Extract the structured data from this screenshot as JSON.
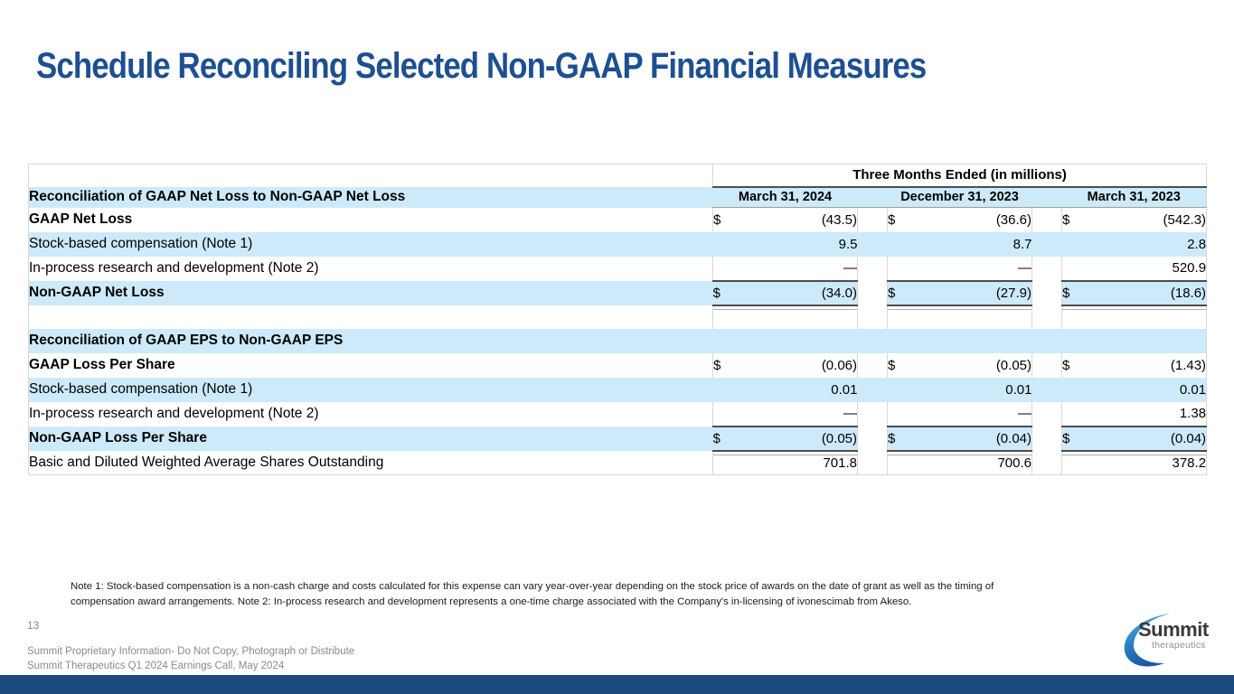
{
  "slide": {
    "title": "Schedule Reconciling Selected Non-GAAP Financial Measures",
    "page_number": "13",
    "footer_line1": "Summit Proprietary Information- Do Not Copy, Photograph or Distribute",
    "footer_line2": "Summit Therapeutics Q1 2024 Earnings Call, May 2024",
    "note": "Note 1: Stock-based compensation is a non-cash charge and costs calculated for this expense can vary year-over-year depending on the stock price of awards on the date of grant as well as the timing of compensation award arrangements. Note 2: In-process research and development represents a one-time charge associated with the Company's in-licensing of ivonescimab from Akeso.",
    "logo": {
      "name": "Summit",
      "sub": "therapeutics"
    }
  },
  "colors": {
    "title_blue": "#1d4f91",
    "stripe_blue": "#cdeafb",
    "bottom_bar_navy": "#1a4a7e",
    "rule_dark": "#4d4d4d",
    "logo_swoosh_light": "#48b7e8",
    "logo_swoosh_dark": "#1b5aa3"
  },
  "table": {
    "currency": "$",
    "period_header": "Three Months Ended (in millions)",
    "columns": [
      "March 31, 2024",
      "December 31, 2023",
      "March 31, 2023"
    ],
    "rows": [
      {
        "type": "period",
        "name": "period-header-row",
        "text": "Three Months Ended (in millions)"
      },
      {
        "type": "colhead",
        "name": "column-header-row",
        "shade": true,
        "label": "Reconciliation of GAAP Net Loss to Non-GAAP Net Loss",
        "cols": [
          "March 31, 2024",
          "December 31, 2023",
          "March 31, 2023"
        ]
      },
      {
        "type": "data",
        "name": "row-gaap-net-loss",
        "shade": false,
        "bold": true,
        "dollar": true,
        "label": "GAAP Net Loss",
        "values": [
          "(43.5)",
          "(36.6)",
          "(542.3)"
        ]
      },
      {
        "type": "data",
        "name": "row-stock-based-comp-netloss",
        "shade": true,
        "bold": false,
        "dollar": false,
        "label": "Stock-based compensation (Note 1)",
        "values": [
          "9.5",
          "8.7",
          "2.8"
        ]
      },
      {
        "type": "data",
        "name": "row-iprd-netloss",
        "shade": false,
        "bold": false,
        "dollar": false,
        "underline": true,
        "label": "In-process research and development (Note 2)",
        "values": [
          "—",
          "—",
          "520.9"
        ]
      },
      {
        "type": "data",
        "name": "row-non-gaap-net-loss",
        "shade": true,
        "bold": true,
        "dollar": true,
        "underline": true,
        "total": true,
        "label": "Non-GAAP Net Loss",
        "values": [
          "(34.0)",
          "(27.9)",
          "(18.6)"
        ]
      },
      {
        "type": "blank",
        "name": "spacer-row",
        "shade": false,
        "after_total": true,
        "label": "",
        "values": [
          "",
          "",
          ""
        ]
      },
      {
        "type": "data",
        "name": "row-eps-section-header",
        "shade": true,
        "bold": true,
        "dollar": false,
        "label": "Reconciliation of GAAP EPS to Non-GAAP EPS",
        "values": [
          "",
          "",
          ""
        ]
      },
      {
        "type": "data",
        "name": "row-gaap-loss-per-share",
        "shade": false,
        "bold": true,
        "dollar": true,
        "label": "GAAP Loss Per Share",
        "values": [
          "(0.06)",
          "(0.05)",
          "(1.43)"
        ]
      },
      {
        "type": "data",
        "name": "row-stock-based-comp-eps",
        "shade": true,
        "bold": false,
        "dollar": false,
        "label": "Stock-based compensation (Note 1)",
        "values": [
          "0.01",
          "0.01",
          "0.01"
        ]
      },
      {
        "type": "data",
        "name": "row-iprd-eps",
        "shade": false,
        "bold": false,
        "dollar": false,
        "underline": true,
        "label": "In-process research and development (Note 2)",
        "values": [
          "—",
          "—",
          "1.38"
        ]
      },
      {
        "type": "data",
        "name": "row-non-gaap-loss-per-share",
        "shade": true,
        "bold": true,
        "dollar": true,
        "underline": true,
        "total": true,
        "label": "Non-GAAP Loss Per Share",
        "values": [
          "(0.05)",
          "(0.04)",
          "(0.04)"
        ]
      },
      {
        "type": "data",
        "name": "row-weighted-avg-shares",
        "shade": false,
        "bold": false,
        "dollar": false,
        "after_total": true,
        "label": "Basic and Diluted Weighted Average Shares Outstanding",
        "values": [
          "701.8",
          "700.6",
          "378.2"
        ]
      }
    ]
  }
}
